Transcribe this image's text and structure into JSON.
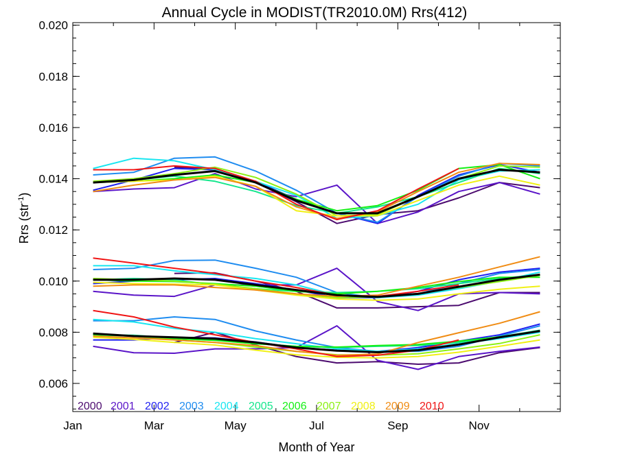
{
  "chart_data": {
    "type": "line",
    "title": "Annual Cycle in MODIST(TR2010.0M) Rrs(412)",
    "xlabel": "Month of Year",
    "ylabel": "Rrs (str",
    "ylabel_sup": "-1",
    "ylabel_end": ")",
    "xlim": [
      0,
      12
    ],
    "ylim": [
      0.0049,
      0.0201
    ],
    "x_ticks": [
      {
        "value": 0,
        "label": "Jan"
      },
      {
        "value": 2,
        "label": "Mar"
      },
      {
        "value": 4,
        "label": "May"
      },
      {
        "value": 6,
        "label": "Jul"
      },
      {
        "value": 8,
        "label": "Sep"
      },
      {
        "value": 10,
        "label": "Nov"
      }
    ],
    "y_ticks": [
      {
        "value": 0.006,
        "label": "0.006"
      },
      {
        "value": 0.008,
        "label": "0.008"
      },
      {
        "value": 0.01,
        "label": "0.010"
      },
      {
        "value": 0.012,
        "label": "0.012"
      },
      {
        "value": 0.014,
        "label": "0.014"
      },
      {
        "value": 0.016,
        "label": "0.016"
      },
      {
        "value": 0.018,
        "label": "0.018"
      },
      {
        "value": 0.02,
        "label": "0.020"
      }
    ],
    "legend_position": "bottom-left",
    "x": [
      0.5,
      1.5,
      2.5,
      3.5,
      4.5,
      5.5,
      6.5,
      7.5,
      8.5,
      9.5,
      10.5,
      11.5
    ],
    "series": [
      {
        "name": "2000",
        "color": "#4b0a6e",
        "groups": [
          [
            null,
            null,
            0.01445,
            0.0144,
            0.01385,
            0.0131,
            0.01225,
            0.0126,
            0.01275,
            0.01325,
            0.01385,
            0.01365
          ],
          [
            null,
            null,
            0.0103,
            0.01032,
            0.01,
            0.0096,
            0.00895,
            0.00895,
            0.009,
            0.00905,
            0.00955,
            0.00955
          ],
          [
            null,
            null,
            0.0076,
            0.008,
            0.0075,
            0.00705,
            0.0068,
            0.00685,
            0.00675,
            0.0068,
            0.0072,
            0.0074
          ]
        ]
      },
      {
        "name": "2001",
        "color": "#5a14c8",
        "groups": [
          [
            0.0135,
            0.0136,
            0.01365,
            0.0142,
            0.0136,
            0.0133,
            0.01375,
            0.01225,
            0.0127,
            0.0135,
            0.01385,
            0.0134
          ],
          [
            0.0096,
            0.00945,
            0.0094,
            0.00985,
            0.00985,
            0.00985,
            0.0105,
            0.0092,
            0.00885,
            0.0095,
            0.00955,
            0.0095
          ],
          [
            0.00745,
            0.0072,
            0.00718,
            0.00735,
            0.00735,
            0.0074,
            0.00825,
            0.0069,
            0.00655,
            0.00705,
            0.00725,
            0.00742
          ]
        ]
      },
      {
        "name": "2002",
        "color": "#1e1ef0",
        "groups": [
          [
            0.01355,
            0.01395,
            0.0144,
            0.01435,
            0.0139,
            0.0132,
            0.01265,
            0.01225,
            0.01335,
            0.01415,
            0.01455,
            0.01425
          ],
          [
            0.0099,
            0.01,
            0.01005,
            0.0101,
            0.0099,
            0.00965,
            0.00935,
            0.00935,
            0.0096,
            0.01005,
            0.01035,
            0.0105
          ],
          [
            0.0077,
            0.0077,
            0.0078,
            0.00778,
            0.00762,
            0.0074,
            0.0073,
            0.00725,
            0.0074,
            0.00765,
            0.0079,
            0.00832
          ]
        ]
      },
      {
        "name": "2003",
        "color": "#1e8cf0",
        "groups": [
          [
            0.01415,
            0.01425,
            0.0148,
            0.01485,
            0.0143,
            0.01355,
            0.01265,
            0.0123,
            0.0133,
            0.0141,
            0.0146,
            0.0145
          ],
          [
            0.01045,
            0.0105,
            0.0108,
            0.01082,
            0.0105,
            0.01015,
            0.00955,
            0.00935,
            0.0095,
            0.0099,
            0.0103,
            0.01045
          ],
          [
            0.00845,
            0.00845,
            0.0086,
            0.0085,
            0.00805,
            0.0077,
            0.0074,
            0.00725,
            0.00725,
            0.00745,
            0.00785,
            0.00825
          ]
        ]
      },
      {
        "name": "2004",
        "color": "#19e6f0",
        "groups": [
          [
            0.0144,
            0.0148,
            0.0147,
            0.01435,
            0.0139,
            0.01335,
            0.01245,
            0.01255,
            0.013,
            0.01395,
            0.0143,
            0.01435
          ],
          [
            0.0106,
            0.0106,
            0.0104,
            0.01025,
            0.0101,
            0.00985,
            0.00945,
            0.00935,
            0.00945,
            0.0097,
            0.01,
            0.01035
          ],
          [
            0.0085,
            0.0084,
            0.00815,
            0.008,
            0.00775,
            0.00755,
            0.00735,
            0.00725,
            0.00735,
            0.00755,
            0.00775,
            0.008
          ]
        ]
      },
      {
        "name": "2005",
        "color": "#14e68c",
        "groups": [
          [
            0.01385,
            0.01395,
            0.0141,
            0.0139,
            0.0135,
            0.01295,
            0.01265,
            0.0129,
            0.0133,
            0.01385,
            0.0144,
            0.0142
          ],
          [
            0.01005,
            0.0101,
            0.01005,
            0.00985,
            0.0097,
            0.0096,
            0.00955,
            0.0096,
            0.0097,
            0.0099,
            0.0101,
            0.01025
          ],
          [
            0.0079,
            0.00788,
            0.00778,
            0.0077,
            0.00755,
            0.00745,
            0.0074,
            0.00745,
            0.00748,
            0.0076,
            0.00782,
            0.00808
          ]
        ]
      },
      {
        "name": "2006",
        "color": "#14f014",
        "groups": [
          [
            0.01385,
            0.0139,
            0.014,
            0.01415,
            0.01385,
            0.0132,
            0.01275,
            0.01295,
            0.01355,
            0.0144,
            0.01455,
            0.014
          ],
          [
            0.01005,
            0.01,
            0.00998,
            0.0099,
            0.0098,
            0.0096,
            0.0095,
            0.0096,
            0.00975,
            0.00998,
            0.01015,
            0.01015
          ],
          [
            0.0079,
            0.00785,
            0.00775,
            0.00768,
            0.00755,
            0.00745,
            0.00742,
            0.00748,
            0.00752,
            0.00765,
            0.00782,
            0.00805
          ]
        ]
      },
      {
        "name": "2007",
        "color": "#8cf014",
        "groups": [
          [
            0.0139,
            0.014,
            0.0142,
            0.01445,
            0.01405,
            0.0134,
            0.01255,
            0.0126,
            0.0133,
            0.014,
            0.0145,
            0.01445
          ],
          [
            0.0101,
            0.01005,
            0.01,
            0.00988,
            0.0097,
            0.0095,
            0.00935,
            0.00938,
            0.00952,
            0.00975,
            0.00998,
            0.01022
          ],
          [
            0.00795,
            0.00785,
            0.0077,
            0.0076,
            0.00742,
            0.00725,
            0.00712,
            0.0071,
            0.00716,
            0.00735,
            0.00756,
            0.0079
          ]
        ]
      },
      {
        "name": "2008",
        "color": "#f0f014",
        "groups": [
          [
            0.01385,
            0.0139,
            0.01395,
            0.0141,
            0.0137,
            0.01275,
            0.01255,
            0.01255,
            0.01315,
            0.01375,
            0.0141,
            0.01375
          ],
          [
            0.00995,
            0.0099,
            0.00988,
            0.00985,
            0.00965,
            0.00945,
            0.0093,
            0.00925,
            0.0093,
            0.0095,
            0.00968,
            0.0098
          ],
          [
            0.0078,
            0.00772,
            0.0076,
            0.0075,
            0.0073,
            0.00712,
            0.00702,
            0.007,
            0.00705,
            0.00722,
            0.00745,
            0.0077
          ]
        ]
      },
      {
        "name": "2009",
        "color": "#f08c14",
        "groups": [
          [
            0.0135,
            0.01375,
            0.01395,
            0.01405,
            0.0137,
            0.0129,
            0.01245,
            0.0127,
            0.0135,
            0.01425,
            0.0146,
            0.01455
          ],
          [
            0.0098,
            0.00985,
            0.00985,
            0.00975,
            0.00965,
            0.0095,
            0.0094,
            0.00945,
            0.0098,
            0.01015,
            0.01055,
            0.01095
          ],
          [
            0.00785,
            0.00778,
            0.0077,
            0.0076,
            0.00748,
            0.00725,
            0.0071,
            0.00715,
            0.0076,
            0.00798,
            0.00835,
            0.0088
          ]
        ]
      },
      {
        "name": "2010",
        "color": "#f01414",
        "groups": [
          [
            0.01435,
            0.01435,
            0.0145,
            0.0144,
            0.0139,
            0.013,
            0.0124,
            0.01275,
            0.0136,
            0.0144,
            null,
            null
          ],
          [
            0.0109,
            0.0107,
            0.0105,
            0.0103,
            0.01,
            0.00975,
            0.00945,
            0.0094,
            0.0096,
            0.00985,
            null,
            null
          ],
          [
            0.00885,
            0.0086,
            0.0082,
            0.0079,
            0.0076,
            0.00735,
            0.00705,
            0.0071,
            0.0073,
            0.0077,
            null,
            null
          ]
        ]
      },
      {
        "color": "#000000",
        "width": 3,
        "groups": [
          [
            0.01385,
            0.01395,
            0.01415,
            0.0143,
            0.01385,
            0.01315,
            0.01265,
            0.01265,
            0.0133,
            0.014,
            0.01435,
            0.01425
          ],
          [
            0.01005,
            0.01005,
            0.0101,
            0.01005,
            0.00985,
            0.00965,
            0.00945,
            0.00938,
            0.0095,
            0.00978,
            0.01005,
            0.01025
          ],
          [
            0.00795,
            0.00785,
            0.0078,
            0.00775,
            0.0076,
            0.0074,
            0.00728,
            0.00722,
            0.0073,
            0.00752,
            0.0078,
            0.00805
          ]
        ]
      }
    ]
  }
}
